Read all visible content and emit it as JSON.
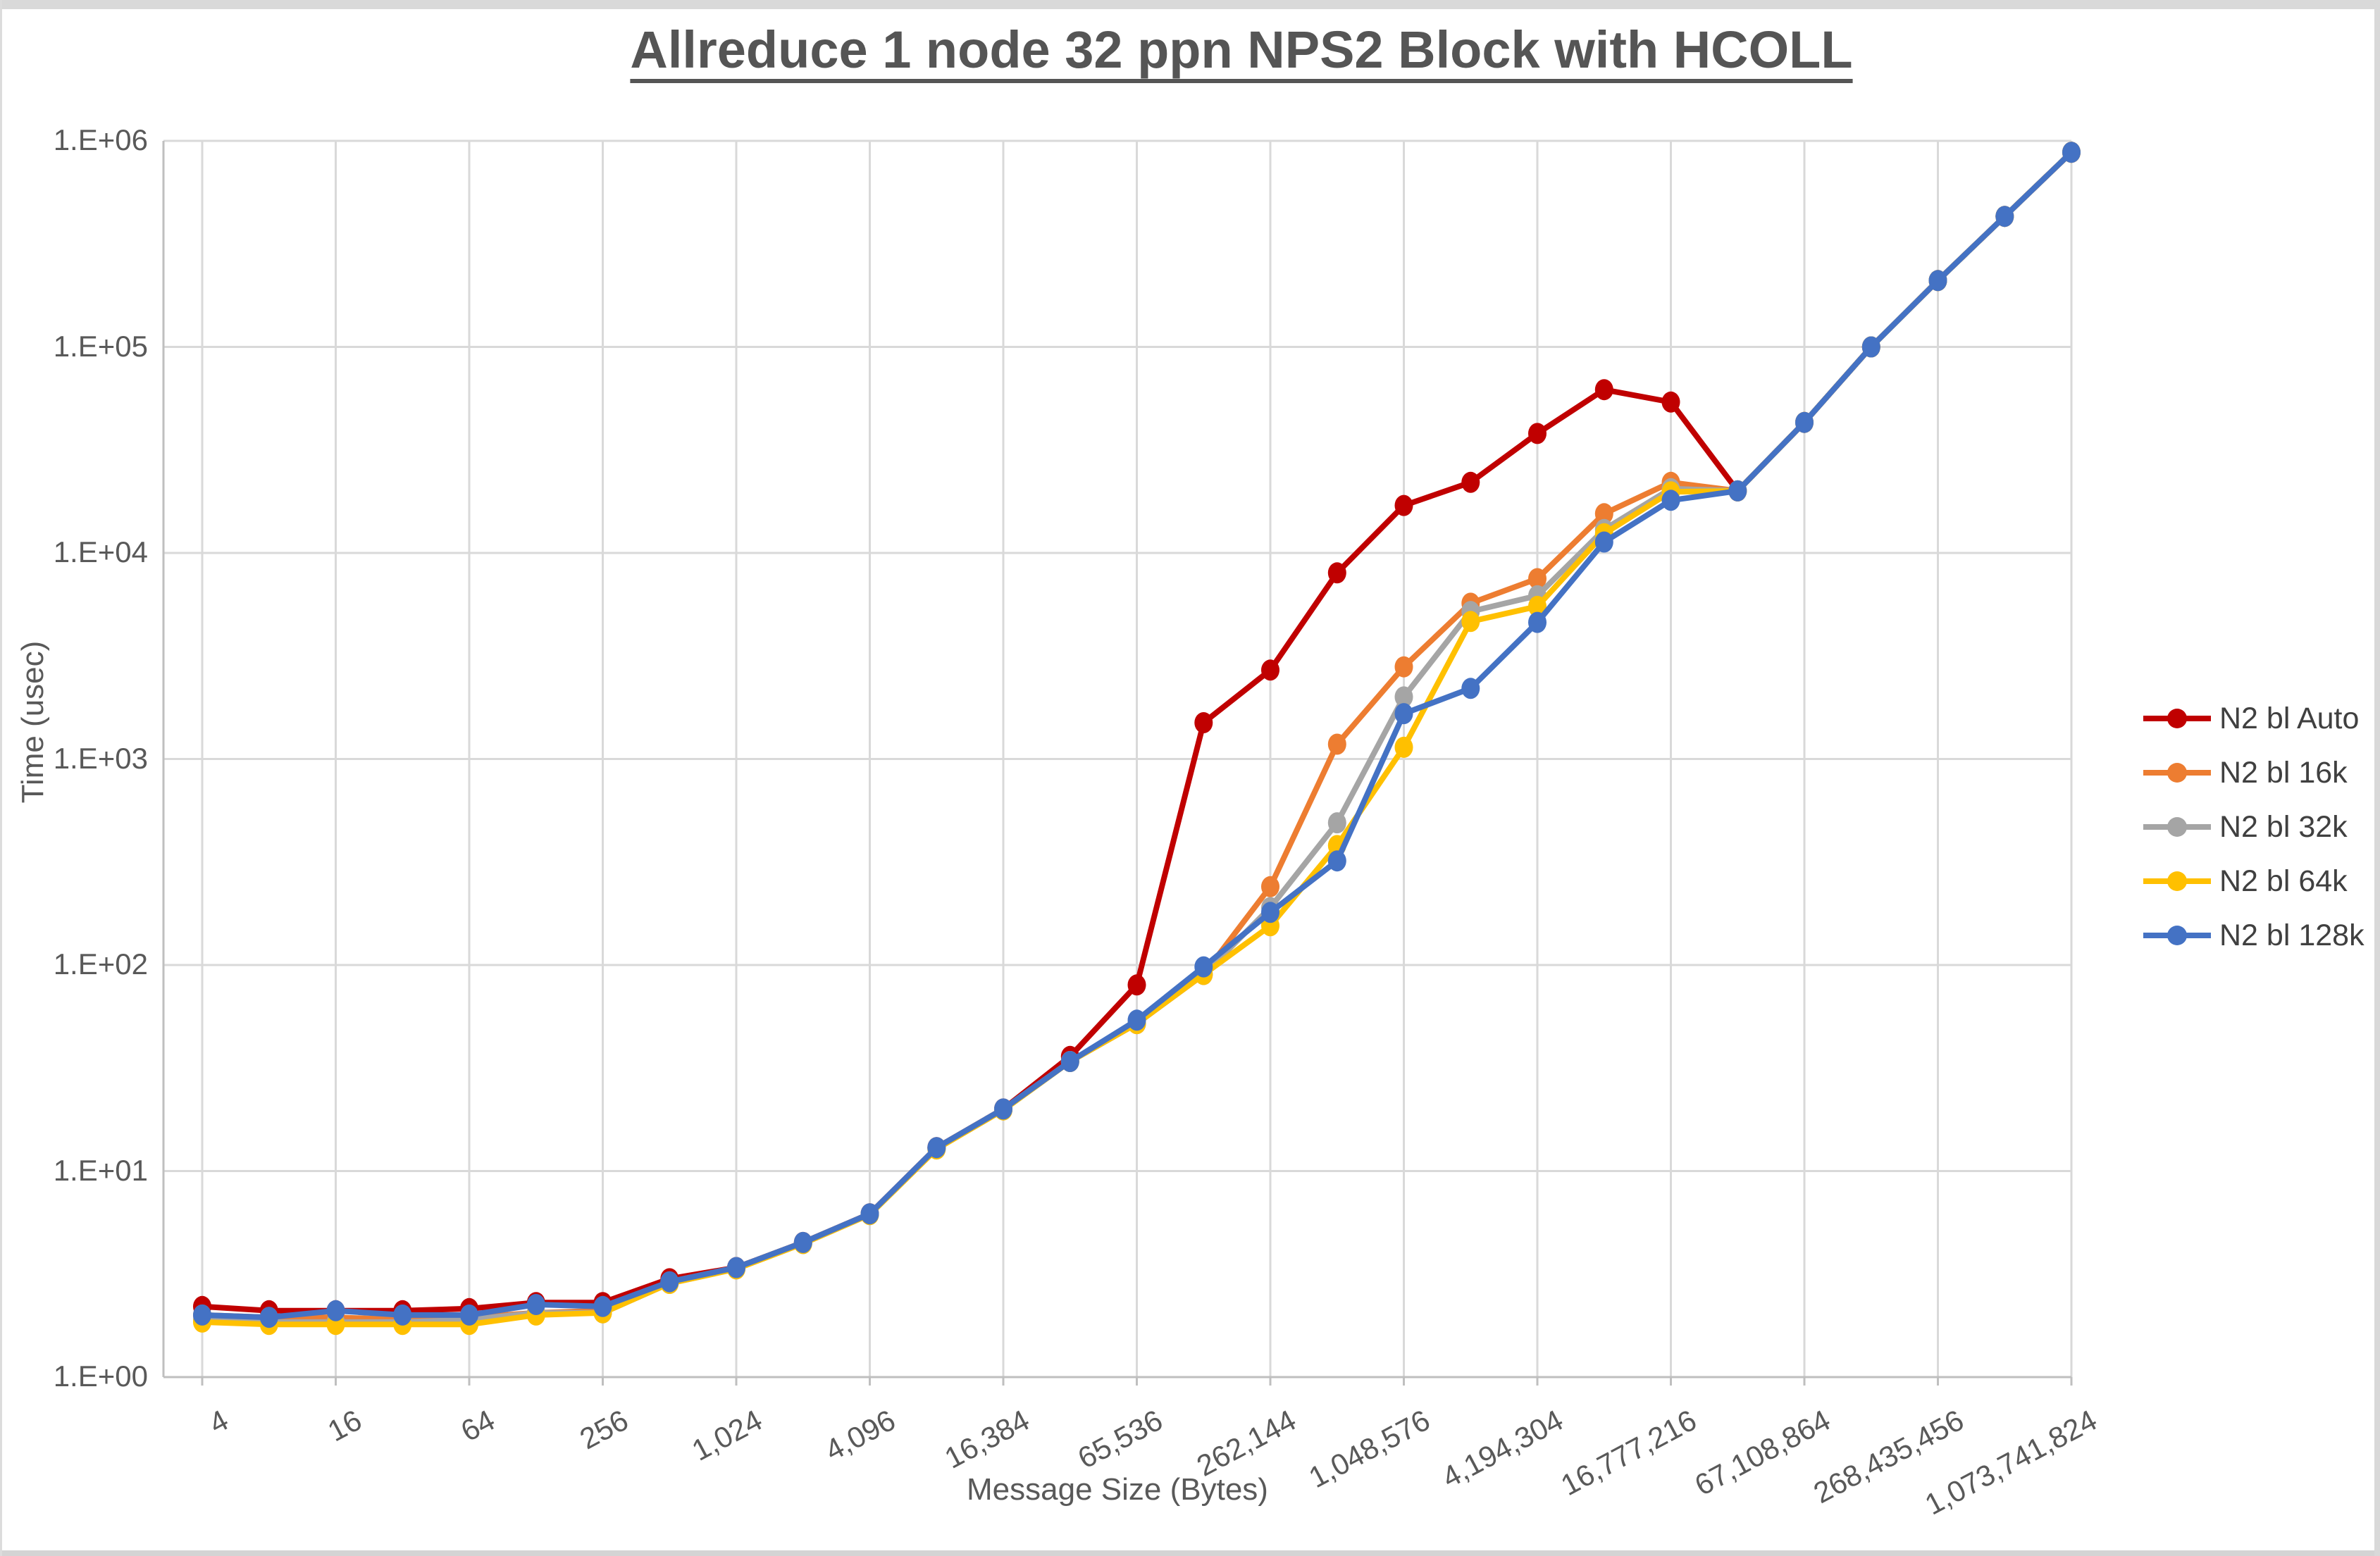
{
  "window": {
    "frame_color": "#d9d9d9"
  },
  "chart": {
    "title": "Allreduce 1 node 32 ppn NPS2 Block with HCOLL",
    "x_label": "Message Size (Bytes)",
    "y_label": "Time (usec)"
  },
  "colors": {
    "gridline": "#d9d9d9",
    "axis_line": "#bfbfbf",
    "tick_text": "#595959",
    "title_text": "#555555",
    "legend_text": "#404040"
  },
  "chart_data": {
    "type": "line",
    "x_scale": "log",
    "y_scale": "log",
    "title": "Allreduce 1 node 32 ppn NPS2 Block with HCOLL",
    "xlabel": "Message Size (Bytes)",
    "ylabel": "Time (usec)",
    "ylim": [
      1,
      1000000
    ],
    "grid": true,
    "legend_position": "right",
    "y_tick_labels": [
      "1.E+00",
      "1.E+01",
      "1.E+02",
      "1.E+03",
      "1.E+04",
      "1.E+05",
      "1.E+06"
    ],
    "x_tick_labels": [
      "4",
      "16",
      "64",
      "256",
      "1,024",
      "4,096",
      "16,384",
      "65,536",
      "262,144",
      "1,048,576",
      "4,194,304",
      "16,777,216",
      "67,108,864",
      "268,435,456",
      "1,073,741,824"
    ],
    "categories": [
      4,
      8,
      16,
      32,
      64,
      128,
      256,
      512,
      1024,
      2048,
      4096,
      8192,
      16384,
      32768,
      65536,
      131072,
      262144,
      524288,
      1048576,
      2097152,
      4194304,
      8388608,
      16777216,
      33554432,
      67108864,
      134217728,
      268435456,
      536870912,
      1073741824
    ],
    "series": [
      {
        "name": "N2 bl Auto",
        "color": "#c00000",
        "values": [
          2.2,
          2.1,
          2.1,
          2.1,
          2.15,
          2.3,
          2.3,
          3.0,
          3.4,
          4.5,
          6.2,
          13,
          20,
          36,
          80,
          1500,
          2700,
          8000,
          17000,
          22000,
          38000,
          62000,
          54000,
          20000,
          43000,
          100000,
          210000,
          430000,
          880000
        ]
      },
      {
        "name": "N2 bl 16k",
        "color": "#ed7d31",
        "values": [
          2.0,
          1.95,
          1.95,
          1.9,
          1.95,
          2.05,
          2.1,
          2.9,
          3.4,
          4.5,
          6.2,
          13,
          20,
          34,
          52,
          90,
          240,
          1180,
          2800,
          5700,
          7500,
          15500,
          22000,
          20000,
          43000,
          100000,
          210000,
          430000,
          880000
        ]
      },
      {
        "name": "N2 bl 32k",
        "color": "#a5a5a5",
        "values": [
          1.9,
          1.85,
          1.85,
          1.85,
          1.9,
          2.05,
          2.05,
          2.85,
          3.35,
          4.45,
          6.15,
          12.8,
          19.8,
          34,
          52,
          90,
          190,
          490,
          2000,
          5200,
          6200,
          13000,
          20500,
          20000,
          43000,
          100000,
          210000,
          430000,
          880000
        ]
      },
      {
        "name": "N2 bl 64k",
        "color": "#ffc000",
        "values": [
          1.85,
          1.8,
          1.8,
          1.8,
          1.8,
          2.0,
          2.05,
          2.85,
          3.35,
          4.45,
          6.15,
          12.8,
          19.8,
          34,
          52,
          90,
          155,
          380,
          1140,
          4650,
          5500,
          12400,
          19800,
          20000,
          43000,
          100000,
          210000,
          430000,
          880000
        ]
      },
      {
        "name": "N2 bl 128k",
        "color": "#4472c4",
        "values": [
          2.0,
          1.95,
          2.1,
          2.0,
          2.0,
          2.25,
          2.2,
          2.9,
          3.4,
          4.5,
          6.2,
          13,
          20,
          34,
          54,
          98,
          180,
          320,
          1660,
          2200,
          4600,
          11300,
          18000,
          20000,
          43000,
          100000,
          210000,
          430000,
          880000
        ]
      }
    ]
  }
}
